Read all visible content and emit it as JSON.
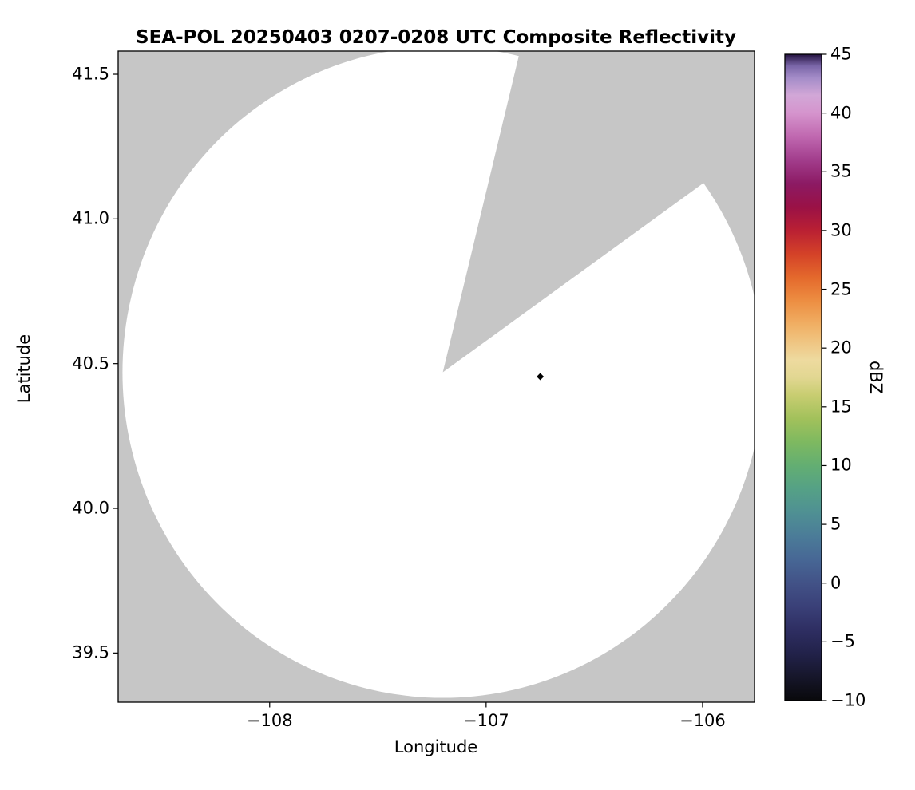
{
  "title": "SEA-POL 20250403 0207-0208 UTC Composite Reflectivity",
  "chart_data": {
    "type": "heatmap",
    "title": "SEA-POL 20250403 0207-0208 UTC Composite Reflectivity",
    "xlabel": "Longitude",
    "ylabel": "Latitude",
    "xlim": [
      -108.7,
      -105.76
    ],
    "ylim": [
      39.33,
      41.58
    ],
    "grid": false,
    "xticks": [
      {
        "value": -108,
        "label": "−108"
      },
      {
        "value": -107,
        "label": "−107"
      },
      {
        "value": -106,
        "label": "−106"
      }
    ],
    "yticks": [
      {
        "value": 39.5,
        "label": "39.5"
      },
      {
        "value": 40.0,
        "label": "40.0"
      },
      {
        "value": 40.5,
        "label": "40.5"
      },
      {
        "value": 41.0,
        "label": "41.0"
      },
      {
        "value": 41.5,
        "label": "41.5"
      }
    ],
    "coverage": {
      "description": "radar scan coverage circle; white = scanned area with no reflectivity shown, gray = outside coverage / blocked sector",
      "center_lon": -107.2,
      "center_lat": 40.47,
      "radius_lon_deg": 1.48,
      "radius_lat_deg": 1.125,
      "blocked_sector": {
        "start_azimuth_deg": 13.5,
        "end_azimuth_deg": 54
      },
      "coverage_color": "#ffffff",
      "background_color": "#c6c6c6"
    },
    "marker": {
      "lon": -106.75,
      "lat": 40.455,
      "shape": "diamond",
      "color": "#000000"
    },
    "colorbar": {
      "label": "dBZ",
      "min": -10,
      "max": 45,
      "ticks": [
        {
          "value": 45,
          "label": "45"
        },
        {
          "value": 40,
          "label": "40"
        },
        {
          "value": 35,
          "label": "35"
        },
        {
          "value": 30,
          "label": "30"
        },
        {
          "value": 25,
          "label": "25"
        },
        {
          "value": 20,
          "label": "20"
        },
        {
          "value": 15,
          "label": "15"
        },
        {
          "value": 10,
          "label": "10"
        },
        {
          "value": 5,
          "label": "5"
        },
        {
          "value": 0,
          "label": "0"
        },
        {
          "value": -5,
          "label": "−5"
        },
        {
          "value": -10,
          "label": "−10"
        }
      ],
      "stops": [
        {
          "value": -10,
          "color": "#09090b"
        },
        {
          "value": -8,
          "color": "#16162a"
        },
        {
          "value": -6,
          "color": "#22224a"
        },
        {
          "value": -4,
          "color": "#2e2e62"
        },
        {
          "value": -2,
          "color": "#3a4078"
        },
        {
          "value": 0,
          "color": "#425287"
        },
        {
          "value": 2,
          "color": "#476795"
        },
        {
          "value": 4,
          "color": "#4b7c98"
        },
        {
          "value": 6,
          "color": "#4f9093"
        },
        {
          "value": 8,
          "color": "#55a186"
        },
        {
          "value": 10,
          "color": "#63ae72"
        },
        {
          "value": 12,
          "color": "#7eb960"
        },
        {
          "value": 14,
          "color": "#a2c15b"
        },
        {
          "value": 16,
          "color": "#c8cd71"
        },
        {
          "value": 17.5,
          "color": "#e2d792"
        },
        {
          "value": 19,
          "color": "#eeda9f"
        },
        {
          "value": 20,
          "color": "#efcc8c"
        },
        {
          "value": 22,
          "color": "#f0af64"
        },
        {
          "value": 24,
          "color": "#ed8e42"
        },
        {
          "value": 26,
          "color": "#e4692c"
        },
        {
          "value": 28,
          "color": "#d44228"
        },
        {
          "value": 30,
          "color": "#ba2033"
        },
        {
          "value": 32,
          "color": "#9a1146"
        },
        {
          "value": 34,
          "color": "#8c1a64"
        },
        {
          "value": 36,
          "color": "#a23d8c"
        },
        {
          "value": 38,
          "color": "#c068b0"
        },
        {
          "value": 40,
          "color": "#d594cd"
        },
        {
          "value": 41.5,
          "color": "#d2a7d7"
        },
        {
          "value": 43,
          "color": "#a48cc8"
        },
        {
          "value": 44,
          "color": "#7a66a8"
        },
        {
          "value": 45,
          "color": "#241240"
        }
      ]
    }
  }
}
